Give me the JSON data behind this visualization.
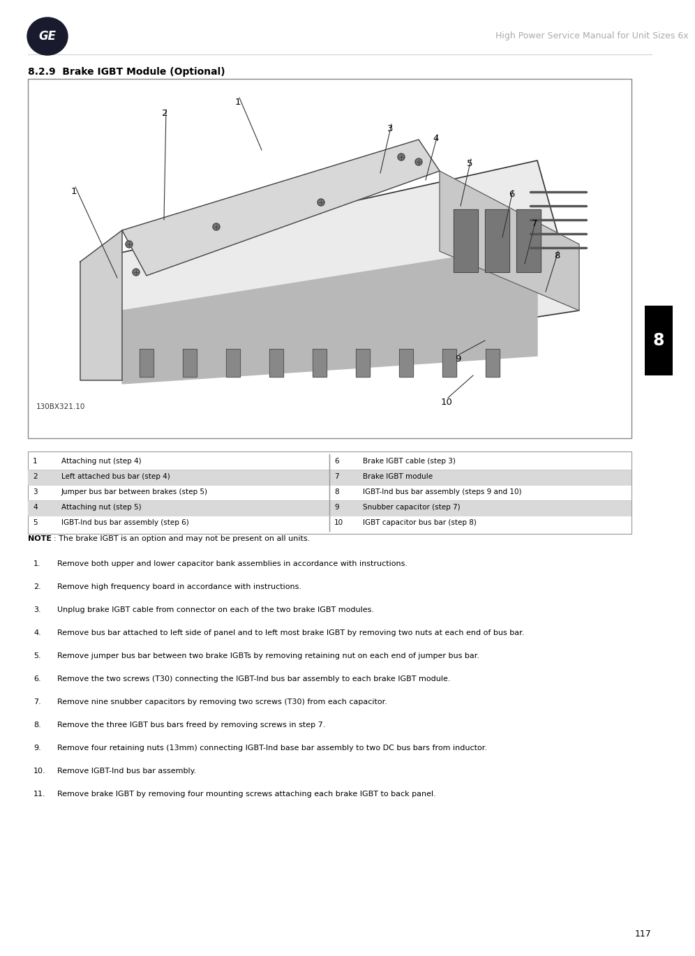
{
  "header_text": "High Power Service Manual for Unit Sizes 6x",
  "section_title": "8.2.9  Brake IGBT Module (Optional)",
  "image_label": "130BX321.10",
  "page_number": "117",
  "chapter_number": "8",
  "table_data": [
    {
      "num": "1",
      "desc": "Attaching nut (step 4)",
      "shaded": false
    },
    {
      "num": "2",
      "desc": "Left attached bus bar (step 4)",
      "shaded": true
    },
    {
      "num": "3",
      "desc": "Jumper bus bar between brakes (step 5)",
      "shaded": false
    },
    {
      "num": "4",
      "desc": "Attaching nut (step 5)",
      "shaded": true
    },
    {
      "num": "5",
      "desc": "IGBT-Ind bus bar assembly (step 6)",
      "shaded": false
    },
    {
      "num": "6",
      "desc": "Brake IGBT cable (step 3)",
      "shaded": false
    },
    {
      "num": "7",
      "desc": "Brake IGBT module",
      "shaded": true
    },
    {
      "num": "8",
      "desc": "IGBT-Ind bus bar assembly (steps 9 and 10)",
      "shaded": false
    },
    {
      "num": "9",
      "desc": "Snubber capacitor (step 7)",
      "shaded": true
    },
    {
      "num": "10",
      "desc": "IGBT capacitor bus bar (step 8)",
      "shaded": false
    }
  ],
  "note_bold": "NOTE",
  "note_rest": ": The brake IGBT is an option and may not be present on all units.",
  "steps": [
    "Remove both upper and lower capacitor bank assemblies in accordance with instructions.",
    "Remove high frequency board in accordance with instructions.",
    "Unplug brake IGBT cable from connector on each of the two brake IGBT modules.",
    "Remove bus bar attached to left side of panel and to left most brake IGBT by removing two nuts at each end of bus bar.",
    "Remove jumper bus bar between two brake IGBTs by removing retaining nut on each end of jumper bus bar.",
    "Remove the two screws (T30) connecting the IGBT-Ind bus bar assembly to each brake IGBT module.",
    "Remove nine snubber capacitors by removing two screws (T30) from each capacitor.",
    "Remove the three IGBT bus bars freed by removing screws in step 7.",
    "Remove four retaining nuts (13mm) connecting IGBT-Ind base bar assembly to two DC bus bars from inductor.",
    "Remove IGBT-Ind bus bar assembly.",
    "Remove brake IGBT by removing four mounting screws attaching each brake IGBT to back panel."
  ],
  "bg_color": "#ffffff",
  "table_shade_color": "#d9d9d9",
  "chapter_tab_color": "#000000",
  "chapter_tab_text_color": "#ffffff"
}
